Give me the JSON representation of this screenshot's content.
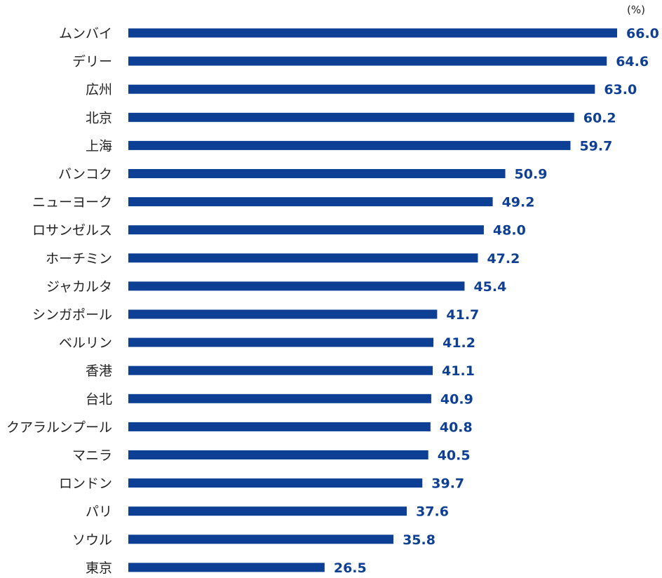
{
  "chart_data": {
    "type": "bar",
    "orientation": "horizontal",
    "unit": "(%)",
    "categories": [
      "ムンバイ",
      "デリー",
      "広州",
      "北京",
      "上海",
      "バンコク",
      "ニューヨーク",
      "ロサンゼルス",
      "ホーチミン",
      "ジャカルタ",
      "シンガポール",
      "ベルリン",
      "香港",
      "台北",
      "クアラルンプール",
      "マニラ",
      "ロンドン",
      "パリ",
      "ソウル",
      "東京"
    ],
    "values": [
      66.0,
      64.6,
      63.0,
      60.2,
      59.7,
      50.9,
      49.2,
      48.0,
      47.2,
      45.4,
      41.7,
      41.2,
      41.1,
      40.9,
      40.8,
      40.5,
      39.7,
      37.6,
      35.8,
      26.5
    ],
    "value_labels": [
      "66.0",
      "64.6",
      "63.0",
      "60.2",
      "59.7",
      "50.9",
      "49.2",
      "48.0",
      "47.2",
      "45.4",
      "41.7",
      "41.2",
      "41.1",
      "40.9",
      "40.8",
      "40.5",
      "39.7",
      "37.6",
      "35.8",
      "26.5"
    ],
    "xlim": [
      0,
      66.0
    ],
    "grid": false,
    "bar_color": "#0d3f94",
    "label_color": "#0d3f94"
  }
}
